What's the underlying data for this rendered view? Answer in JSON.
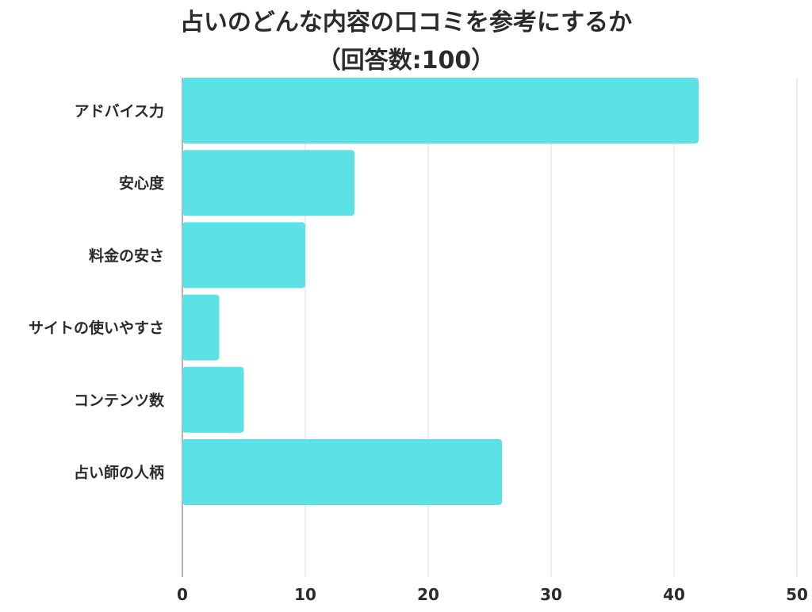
{
  "chart_data": {
    "type": "bar",
    "orientation": "horizontal",
    "title": "占いのどんな内容の口コミを参考にするか",
    "subtitle": "（回答数:100）",
    "categories": [
      "アドバイス力",
      "安心度",
      "料金の安さ",
      "サイトの使いやすさ",
      "コンテンツ数",
      "占い師の人柄"
    ],
    "values": [
      42,
      14,
      10,
      3,
      5,
      26
    ],
    "xlim": [
      0,
      50
    ],
    "xticks": [
      0,
      10,
      20,
      30,
      40,
      50
    ],
    "grid": true,
    "bar_color": "#5ce1e6",
    "grid_color": "#dddddd"
  }
}
